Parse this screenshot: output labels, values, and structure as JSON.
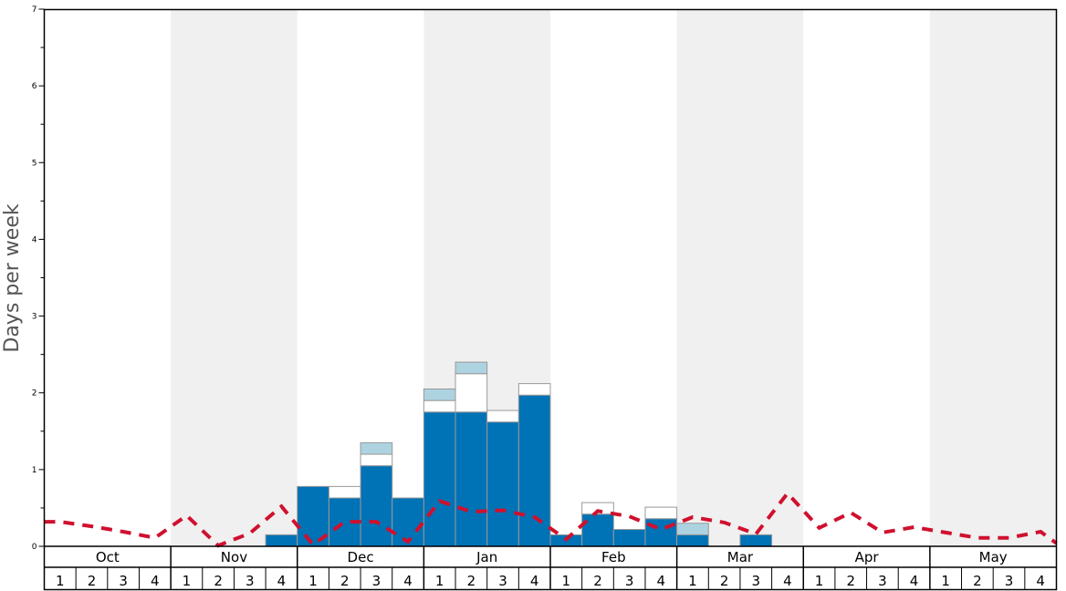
{
  "chart_data": {
    "type": "bar",
    "ylabel": "Days per week",
    "ylim": [
      0,
      7
    ],
    "yticks": [
      "0",
      "1",
      "2",
      "3",
      "4",
      "5",
      "6",
      "7"
    ],
    "months": [
      "Oct",
      "Nov",
      "Dec",
      "Jan",
      "Feb",
      "Mar",
      "Apr",
      "May"
    ],
    "week_labels": [
      "1",
      "2",
      "3",
      "4"
    ],
    "shaded_months": [
      "Nov",
      "Jan",
      "Mar",
      "May"
    ],
    "colors": {
      "dark": "#0072b6",
      "light": "#aed3e0",
      "mid": "#ffffff",
      "line": "#d0102e",
      "shade": "#f0f0f0"
    },
    "series": [
      {
        "values": [
          0,
          0,
          0,
          0,
          0,
          0,
          0,
          0.15,
          0.78,
          0.63,
          1.05,
          0.63,
          1.75,
          1.75,
          1.62,
          1.97,
          0.15,
          0.42,
          0.22,
          0.36,
          0.15,
          0,
          0.15,
          0,
          0,
          0,
          0,
          0,
          0,
          0,
          0,
          0
        ]
      },
      {
        "values": [
          0,
          0,
          0,
          0,
          0,
          0,
          0,
          0,
          0,
          0.15,
          0.15,
          0,
          0.15,
          0.5,
          0.15,
          0.15,
          0,
          0.15,
          0,
          0.15,
          0,
          0,
          0,
          0,
          0,
          0,
          0,
          0,
          0,
          0,
          0,
          0
        ]
      },
      {
        "values": [
          0,
          0,
          0,
          0,
          0,
          0,
          0,
          0,
          0,
          0,
          0.15,
          0,
          0.15,
          0.15,
          0,
          0,
          0,
          0,
          0,
          0,
          0.15,
          0,
          0,
          0,
          0,
          0,
          0,
          0,
          0,
          0,
          0,
          0
        ]
      },
      {
        "type": "line",
        "values": [
          0.32,
          0.26,
          0.19,
          0.11,
          0.4,
          0.01,
          0.17,
          0.52,
          0.02,
          0.32,
          0.32,
          0.06,
          0.59,
          0.45,
          0.47,
          0.38,
          0.09,
          0.46,
          0.39,
          0.22,
          0.38,
          0.31,
          0.16,
          0.69,
          0.24,
          0.44,
          0.18,
          0.25,
          0.18,
          0.11,
          0.11,
          0.19
        ]
      }
    ]
  }
}
